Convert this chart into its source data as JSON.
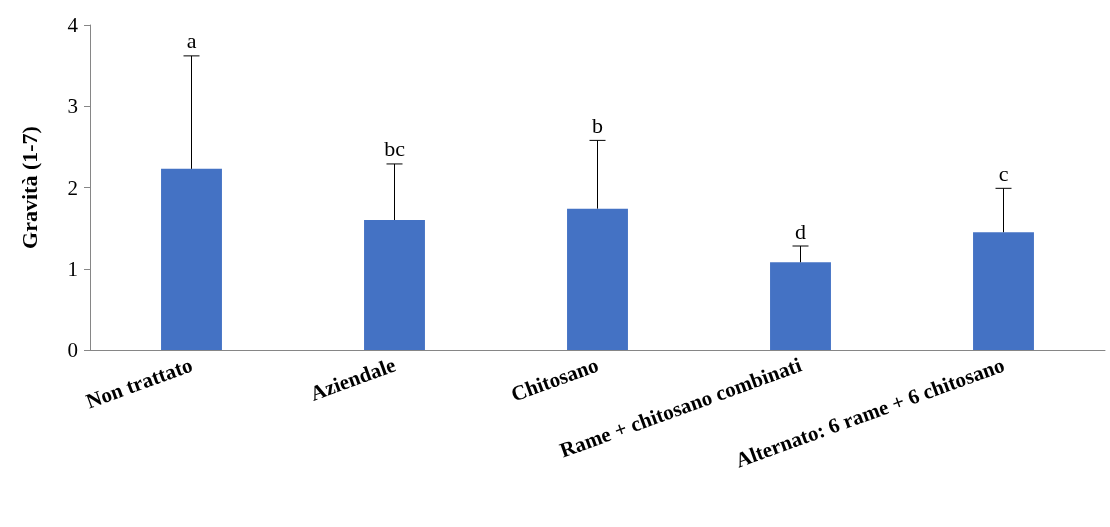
{
  "chart_data": {
    "type": "bar",
    "ylabel": "Gravità (1-7)",
    "categories": [
      "Non trattato",
      "Aziendale",
      "Chitosano",
      "Rame + chitosano combinati",
      "Alternato: 6 rame + 6 chitosano"
    ],
    "values": [
      2.23,
      1.6,
      1.74,
      1.08,
      1.45
    ],
    "errors": [
      [
        2.23,
        3.62
      ],
      [
        1.6,
        2.29
      ],
      [
        1.74,
        2.58
      ],
      [
        1.08,
        1.28
      ],
      [
        1.45,
        1.99
      ]
    ],
    "color": "#4472c4",
    "ylim": [
      0,
      4
    ],
    "yticks": [
      0,
      1,
      2,
      3,
      4
    ],
    "grid": false,
    "annotations": [
      {
        "text": "a",
        "x": "Non trattato",
        "y": 3.62
      },
      {
        "text": "bc",
        "x": "Aziendale",
        "y": 2.29
      },
      {
        "text": "b",
        "x": "Chitosano",
        "y": 2.58
      },
      {
        "text": "d",
        "x": "Rame + chitosano combinati",
        "y": 1.28
      },
      {
        "text": "c",
        "x": "Alternato: 6 rame + 6 chitosano",
        "y": 1.99
      }
    ]
  }
}
